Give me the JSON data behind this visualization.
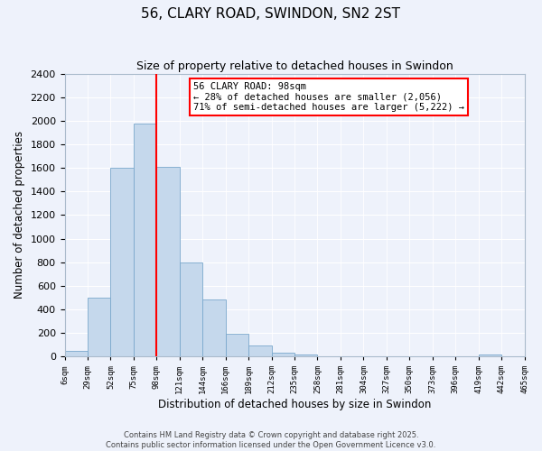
{
  "title": "56, CLARY ROAD, SWINDON, SN2 2ST",
  "subtitle": "Size of property relative to detached houses in Swindon",
  "xlabel": "Distribution of detached houses by size in Swindon",
  "ylabel": "Number of detached properties",
  "bin_labels": [
    "6sqm",
    "29sqm",
    "52sqm",
    "75sqm",
    "98sqm",
    "121sqm",
    "144sqm",
    "166sqm",
    "189sqm",
    "212sqm",
    "235sqm",
    "258sqm",
    "281sqm",
    "304sqm",
    "327sqm",
    "350sqm",
    "373sqm",
    "396sqm",
    "419sqm",
    "442sqm",
    "465sqm"
  ],
  "bar_values": [
    50,
    500,
    1600,
    1980,
    1610,
    800,
    480,
    190,
    90,
    35,
    15,
    0,
    0,
    0,
    0,
    0,
    0,
    0,
    20,
    0
  ],
  "bar_color": "#c5d8ec",
  "bar_edge_color": "#7aa8cc",
  "vline_x": 4,
  "vline_color": "red",
  "ylim": [
    0,
    2400
  ],
  "yticks": [
    0,
    200,
    400,
    600,
    800,
    1000,
    1200,
    1400,
    1600,
    1800,
    2000,
    2200,
    2400
  ],
  "annotation_title": "56 CLARY ROAD: 98sqm",
  "annotation_line1": "← 28% of detached houses are smaller (2,056)",
  "annotation_line2": "71% of semi-detached houses are larger (5,222) →",
  "annotation_box_color": "#ffffff",
  "annotation_box_edge": "red",
  "footer_line1": "Contains HM Land Registry data © Crown copyright and database right 2025.",
  "footer_line2": "Contains public sector information licensed under the Open Government Licence v3.0.",
  "background_color": "#eef2fb",
  "grid_color": "#ffffff",
  "spine_color": "#aabbcc"
}
